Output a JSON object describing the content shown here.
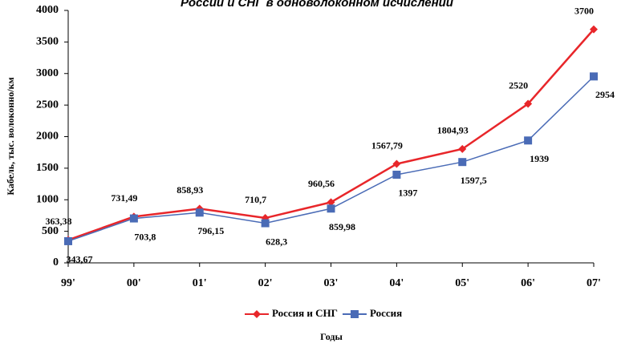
{
  "chart_data": {
    "type": "line",
    "title": "России и СНГ в одноволоконном исчислении",
    "x_label": "Годы",
    "y_label": "Кабель, тыс. волоконно/км",
    "categories": [
      "99'",
      "00'",
      "01'",
      "02'",
      "03'",
      "04'",
      "05'",
      "06'",
      "07'"
    ],
    "series": [
      {
        "name": "Россия и СНГ",
        "color": "#e8262a",
        "marker": "diamond",
        "values": [
          363.38,
          731.49,
          858.93,
          710.7,
          960.56,
          1567.79,
          1804.93,
          2520,
          3700
        ],
        "value_labels": [
          "363,38",
          "731,49",
          "858,93",
          "710,7",
          "960,56",
          "1567,79",
          "1804,93",
          "2520",
          "3700"
        ]
      },
      {
        "name": "Россия",
        "color": "#4a6bb6",
        "marker": "square",
        "values": [
          343.67,
          703.8,
          796.15,
          628.3,
          859.98,
          1397,
          1597.5,
          1939,
          2954
        ],
        "value_labels": [
          "343,67",
          "703,8",
          "796,15",
          "628,3",
          "859,98",
          "1397",
          "1597,5",
          "1939",
          "2954"
        ]
      }
    ],
    "ylim": [
      0,
      4000
    ],
    "yticks": [
      0,
      500,
      1000,
      1500,
      2000,
      2500,
      3000,
      3500,
      4000
    ],
    "grid": false,
    "legend": "bottom"
  }
}
